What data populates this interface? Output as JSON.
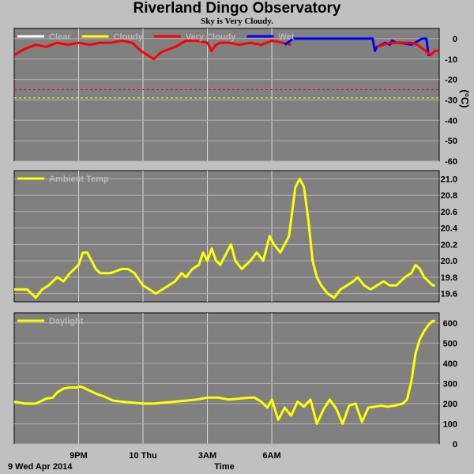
{
  "title": "Riverland Dingo Observatory",
  "subtitle": "Sky is Very Cloudy.",
  "chart_data": [
    {
      "type": "line",
      "panel": "sky",
      "ylabel": "(°C)",
      "ylim": [
        -60,
        5
      ],
      "yticks": [
        0,
        -10,
        -20,
        -30,
        -40,
        -50,
        -60
      ],
      "grid": true,
      "legend": [
        {
          "name": "Clear",
          "color": "#ffffff"
        },
        {
          "name": "Cloudy",
          "color": "#ffff00"
        },
        {
          "name": "Very Cloudy",
          "color": "#ff0000"
        },
        {
          "name": "Wet",
          "color": "#0000ff"
        }
      ],
      "thresholds": [
        {
          "name": "Cloudy",
          "value": -25,
          "color": "#ff0000"
        },
        {
          "name": "Clear",
          "value": -29,
          "color": "#ffff00"
        }
      ],
      "series": [
        {
          "name": "Very Cloudy",
          "color": "#ff0000",
          "x": [
            18.0,
            18.5,
            19.0,
            19.5,
            20.0,
            20.5,
            21.0,
            21.5,
            22.0,
            22.5,
            23.0,
            23.5,
            23.9,
            24.2,
            24.5,
            24.8,
            25.0,
            25.5,
            26.0,
            26.5,
            27.0,
            27.2,
            27.4,
            27.6,
            28.0,
            28.5,
            29.0,
            29.5,
            30.0,
            30.5,
            30.9
          ],
          "y": [
            -8,
            -5,
            -3,
            -4,
            -2,
            -3,
            -2,
            -3,
            -2,
            -2,
            -1,
            -2,
            -6,
            -8,
            -10,
            -7,
            -6,
            -4,
            -1,
            -1,
            -2,
            -6,
            -3,
            -2,
            -2,
            -3,
            -2,
            -3,
            -1,
            -2,
            -3
          ]
        },
        {
          "name": "Wet",
          "color": "#0000ff",
          "x": [
            30.6,
            31.0,
            31.5,
            32.0,
            32.5,
            33.0,
            33.5,
            34.0,
            34.7,
            34.8,
            34.9,
            35.3,
            35.5,
            35.6,
            35.8,
            36.0,
            36.5,
            37.0,
            37.2,
            37.3,
            37.4
          ],
          "y": [
            -3,
            0,
            0,
            0,
            0,
            0,
            0,
            0,
            0,
            -6,
            -4,
            -2,
            -3,
            -1,
            -2,
            -2,
            -3,
            0,
            0,
            -8,
            -8
          ]
        },
        {
          "name": "Very Cloudy",
          "color": "#ff0000",
          "x": [
            34.9,
            35.2,
            35.5,
            36.0,
            36.5,
            36.8,
            37.4,
            37.6,
            37.8
          ],
          "y": [
            -4,
            -3,
            -2,
            -2,
            -2,
            -3,
            -8,
            -6,
            -6
          ]
        }
      ]
    },
    {
      "type": "line",
      "panel": "ambient",
      "ylim": [
        19.5,
        21.1
      ],
      "yticks": [
        21.0,
        20.8,
        20.6,
        20.4,
        20.2,
        20.0,
        19.8,
        19.6
      ],
      "grid": true,
      "legend": [
        {
          "name": "Ambient Temp",
          "color": "#ffff00"
        }
      ],
      "series": [
        {
          "name": "Ambient Temp",
          "color": "#ffff00",
          "x": [
            18.0,
            18.6,
            19.0,
            19.3,
            19.6,
            20.0,
            20.3,
            20.6,
            21.0,
            21.2,
            21.4,
            21.6,
            21.8,
            22.0,
            22.2,
            22.5,
            23.0,
            23.3,
            23.6,
            24.0,
            24.3,
            24.6,
            24.9,
            25.2,
            25.5,
            25.8,
            26.0,
            26.3,
            26.6,
            26.8,
            27.0,
            27.2,
            27.4,
            27.6,
            27.9,
            28.1,
            28.3,
            28.6,
            29.0,
            29.3,
            29.6,
            29.9,
            30.1,
            30.4,
            30.6,
            30.8,
            31.0,
            31.1,
            31.3,
            31.5,
            31.7,
            31.9,
            32.1,
            32.3,
            32.6,
            32.9,
            33.2,
            33.5,
            33.8,
            34.0,
            34.3,
            34.6,
            34.9,
            35.2,
            35.5,
            35.8,
            36.2,
            36.5,
            36.7,
            36.9,
            37.1,
            37.3,
            37.5,
            37.6
          ],
          "y": [
            19.65,
            19.65,
            19.55,
            19.65,
            19.7,
            19.8,
            19.75,
            19.85,
            19.95,
            20.1,
            20.1,
            20.0,
            19.9,
            19.85,
            19.85,
            19.85,
            19.9,
            19.9,
            19.85,
            19.7,
            19.65,
            19.6,
            19.65,
            19.7,
            19.75,
            19.85,
            19.8,
            19.9,
            19.95,
            20.1,
            20.0,
            20.15,
            20.0,
            19.95,
            20.1,
            20.2,
            20.0,
            19.9,
            20.0,
            20.1,
            20.0,
            20.3,
            20.2,
            20.1,
            20.2,
            20.3,
            20.7,
            20.9,
            21.0,
            20.9,
            20.5,
            20.0,
            19.8,
            19.7,
            19.6,
            19.55,
            19.65,
            19.7,
            19.75,
            19.8,
            19.7,
            19.65,
            19.7,
            19.75,
            19.7,
            19.7,
            19.8,
            19.85,
            19.95,
            19.9,
            19.8,
            19.75,
            19.7,
            19.7
          ]
        }
      ]
    },
    {
      "type": "line",
      "panel": "daylight",
      "ylim": [
        0,
        650
      ],
      "yticks": [
        600,
        500,
        400,
        300,
        200,
        100,
        0
      ],
      "grid": true,
      "legend": [
        {
          "name": "Daylight",
          "color": "#ffff00"
        }
      ],
      "series": [
        {
          "name": "Daylight",
          "color": "#ffff00",
          "x": [
            18.0,
            18.5,
            19.0,
            19.5,
            19.8,
            20.0,
            20.3,
            20.6,
            20.9,
            21.1,
            21.4,
            21.8,
            22.2,
            22.6,
            23.0,
            23.5,
            24.0,
            24.5,
            25.0,
            25.5,
            26.0,
            26.5,
            27.0,
            27.5,
            28.0,
            28.5,
            29.0,
            29.2,
            29.5,
            29.8,
            30.0,
            30.3,
            30.6,
            30.9,
            31.2,
            31.5,
            31.8,
            32.1,
            32.4,
            32.7,
            33.0,
            33.3,
            33.6,
            33.9,
            34.2,
            34.5,
            34.8,
            35.1,
            35.4,
            35.7,
            35.9,
            36.1,
            36.3,
            36.5,
            36.7,
            36.9,
            37.1,
            37.3,
            37.5,
            37.6
          ],
          "y": [
            210,
            200,
            200,
            225,
            230,
            255,
            275,
            280,
            280,
            285,
            270,
            250,
            235,
            215,
            210,
            205,
            200,
            200,
            205,
            210,
            215,
            220,
            230,
            230,
            220,
            225,
            230,
            230,
            210,
            180,
            220,
            120,
            180,
            140,
            210,
            185,
            220,
            100,
            170,
            220,
            175,
            100,
            190,
            200,
            110,
            180,
            185,
            190,
            185,
            190,
            195,
            200,
            220,
            310,
            450,
            520,
            560,
            590,
            610,
            610
          ]
        }
      ]
    }
  ],
  "x_axis": {
    "label": "Time",
    "start_label": "9 Wed Apr 2014",
    "xlim": [
      18.0,
      37.8
    ],
    "ticks": [
      {
        "value": 21,
        "label": "9PM"
      },
      {
        "value": 24,
        "label": "10 Thu"
      },
      {
        "value": 27,
        "label": "3AM"
      },
      {
        "value": 30,
        "label": "6AM"
      }
    ]
  }
}
